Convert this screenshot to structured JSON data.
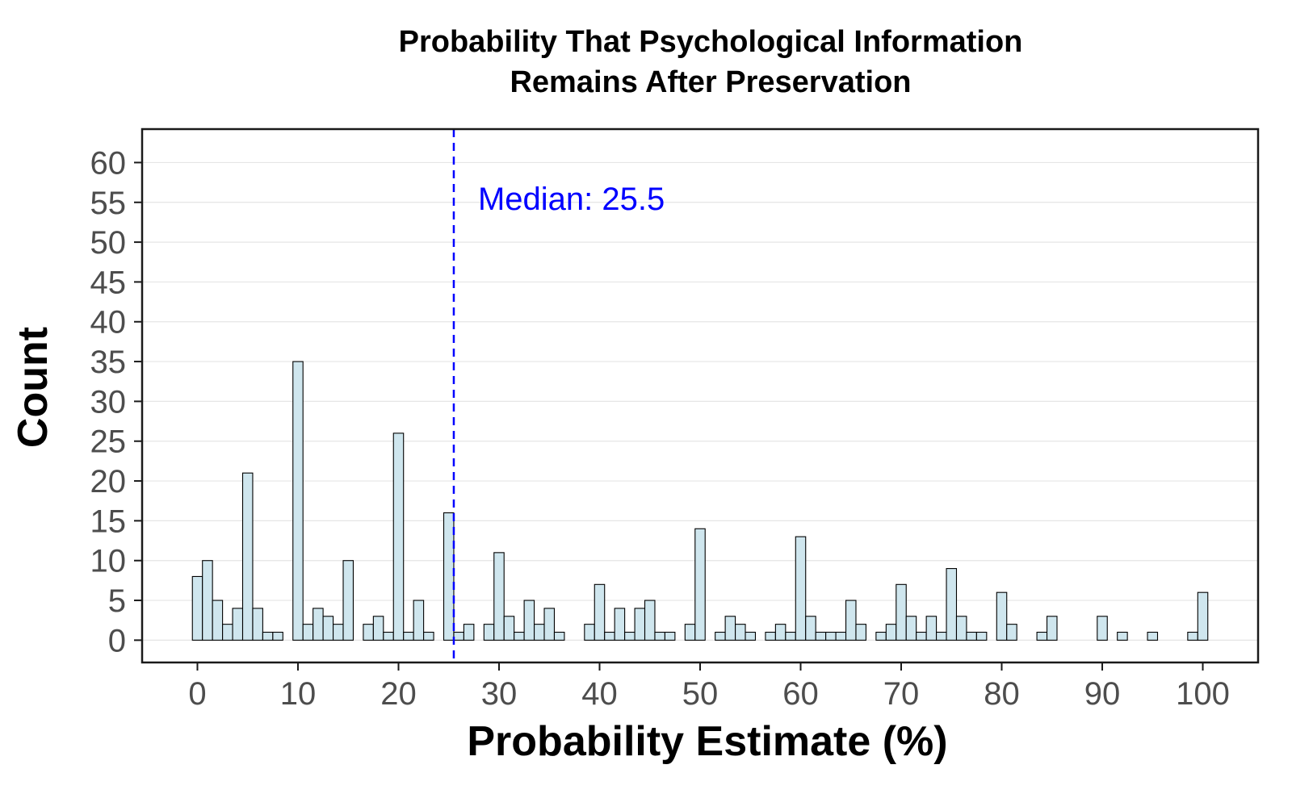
{
  "colors": {
    "bar_fill": "#cfe6ee",
    "bar_stroke": "#000000",
    "median_line": "#0000ff",
    "grid": "#e5e5e5",
    "panel_border": "#1a1a1a",
    "tick_text": "#4d4d4d"
  },
  "chart_data": {
    "type": "bar",
    "title": "Probability That Psychological Information",
    "subtitle": "Remains After Preservation",
    "xlabel": "Probability Estimate (%)",
    "ylabel": "Count",
    "xlim": [
      -5.5,
      105.5
    ],
    "ylim": [
      -2.8,
      64.2
    ],
    "xticks": [
      0,
      10,
      20,
      30,
      40,
      50,
      60,
      70,
      80,
      90,
      100
    ],
    "yticks": [
      0,
      5,
      10,
      15,
      20,
      25,
      30,
      35,
      40,
      45,
      50,
      55,
      60
    ],
    "grid": "horizontal",
    "bin_width": 1,
    "bars": [
      {
        "x": 0,
        "count": 8
      },
      {
        "x": 1,
        "count": 10
      },
      {
        "x": 2,
        "count": 5
      },
      {
        "x": 3,
        "count": 2
      },
      {
        "x": 4,
        "count": 4
      },
      {
        "x": 5,
        "count": 21
      },
      {
        "x": 6,
        "count": 4
      },
      {
        "x": 7,
        "count": 1
      },
      {
        "x": 8,
        "count": 1
      },
      {
        "x": 9,
        "count": 0
      },
      {
        "x": 10,
        "count": 35
      },
      {
        "x": 11,
        "count": 2
      },
      {
        "x": 12,
        "count": 4
      },
      {
        "x": 13,
        "count": 3
      },
      {
        "x": 14,
        "count": 2
      },
      {
        "x": 15,
        "count": 10
      },
      {
        "x": 16,
        "count": 0
      },
      {
        "x": 17,
        "count": 2
      },
      {
        "x": 18,
        "count": 3
      },
      {
        "x": 19,
        "count": 1
      },
      {
        "x": 20,
        "count": 26
      },
      {
        "x": 21,
        "count": 1
      },
      {
        "x": 22,
        "count": 5
      },
      {
        "x": 23,
        "count": 1
      },
      {
        "x": 24,
        "count": 0
      },
      {
        "x": 25,
        "count": 16
      },
      {
        "x": 26,
        "count": 1
      },
      {
        "x": 27,
        "count": 2
      },
      {
        "x": 28,
        "count": 0
      },
      {
        "x": 29,
        "count": 2
      },
      {
        "x": 30,
        "count": 11
      },
      {
        "x": 31,
        "count": 3
      },
      {
        "x": 32,
        "count": 1
      },
      {
        "x": 33,
        "count": 5
      },
      {
        "x": 34,
        "count": 2
      },
      {
        "x": 35,
        "count": 4
      },
      {
        "x": 36,
        "count": 1
      },
      {
        "x": 37,
        "count": 0
      },
      {
        "x": 38,
        "count": 0
      },
      {
        "x": 39,
        "count": 2
      },
      {
        "x": 40,
        "count": 7
      },
      {
        "x": 41,
        "count": 1
      },
      {
        "x": 42,
        "count": 4
      },
      {
        "x": 43,
        "count": 1
      },
      {
        "x": 44,
        "count": 4
      },
      {
        "x": 45,
        "count": 5
      },
      {
        "x": 46,
        "count": 1
      },
      {
        "x": 47,
        "count": 1
      },
      {
        "x": 48,
        "count": 0
      },
      {
        "x": 49,
        "count": 2
      },
      {
        "x": 50,
        "count": 14
      },
      {
        "x": 51,
        "count": 0
      },
      {
        "x": 52,
        "count": 1
      },
      {
        "x": 53,
        "count": 3
      },
      {
        "x": 54,
        "count": 2
      },
      {
        "x": 55,
        "count": 1
      },
      {
        "x": 56,
        "count": 0
      },
      {
        "x": 57,
        "count": 1
      },
      {
        "x": 58,
        "count": 2
      },
      {
        "x": 59,
        "count": 1
      },
      {
        "x": 60,
        "count": 13
      },
      {
        "x": 61,
        "count": 3
      },
      {
        "x": 62,
        "count": 1
      },
      {
        "x": 63,
        "count": 1
      },
      {
        "x": 64,
        "count": 1
      },
      {
        "x": 65,
        "count": 5
      },
      {
        "x": 66,
        "count": 2
      },
      {
        "x": 67,
        "count": 0
      },
      {
        "x": 68,
        "count": 1
      },
      {
        "x": 69,
        "count": 2
      },
      {
        "x": 70,
        "count": 7
      },
      {
        "x": 71,
        "count": 3
      },
      {
        "x": 72,
        "count": 1
      },
      {
        "x": 73,
        "count": 3
      },
      {
        "x": 74,
        "count": 1
      },
      {
        "x": 75,
        "count": 9
      },
      {
        "x": 76,
        "count": 3
      },
      {
        "x": 77,
        "count": 1
      },
      {
        "x": 78,
        "count": 1
      },
      {
        "x": 79,
        "count": 0
      },
      {
        "x": 80,
        "count": 6
      },
      {
        "x": 81,
        "count": 2
      },
      {
        "x": 82,
        "count": 0
      },
      {
        "x": 83,
        "count": 0
      },
      {
        "x": 84,
        "count": 1
      },
      {
        "x": 85,
        "count": 3
      },
      {
        "x": 86,
        "count": 0
      },
      {
        "x": 87,
        "count": 0
      },
      {
        "x": 88,
        "count": 0
      },
      {
        "x": 89,
        "count": 0
      },
      {
        "x": 90,
        "count": 3
      },
      {
        "x": 91,
        "count": 0
      },
      {
        "x": 92,
        "count": 1
      },
      {
        "x": 93,
        "count": 0
      },
      {
        "x": 94,
        "count": 0
      },
      {
        "x": 95,
        "count": 1
      },
      {
        "x": 96,
        "count": 0
      },
      {
        "x": 97,
        "count": 0
      },
      {
        "x": 98,
        "count": 0
      },
      {
        "x": 99,
        "count": 1
      },
      {
        "x": 100,
        "count": 6
      }
    ],
    "median": 25.5,
    "median_label": "Median: 25.5"
  }
}
